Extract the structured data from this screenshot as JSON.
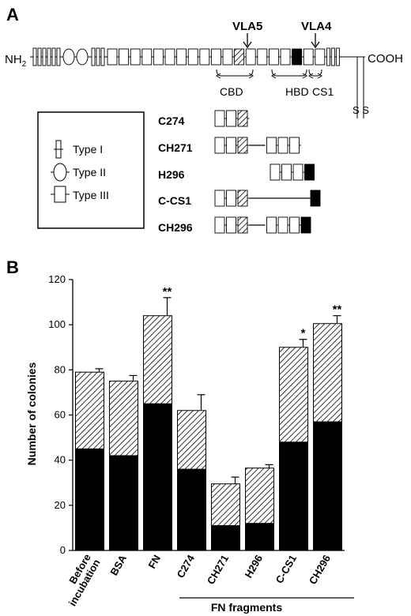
{
  "panel_a": {
    "label": "A",
    "n_term": "NH",
    "n_term_sub": "2",
    "c_term": "COOH",
    "ss": "S S",
    "vla5": "VLA5",
    "vla4": "VLA4",
    "cbd": "CBD",
    "hbd": "HBD",
    "cs1": "CS1",
    "legend": {
      "type1": "Type I",
      "type2": "Type II",
      "type3": "Type III"
    },
    "fragments": [
      "C274",
      "CH271",
      "H296",
      "C-CS1",
      "CH296"
    ]
  },
  "panel_b": {
    "label": "B"
  },
  "chart_data": {
    "type": "bar",
    "stacked": true,
    "categories": [
      "Before incubation",
      "BSA",
      "FN",
      "C274",
      "CH271",
      "H296",
      "C-CS1",
      "CH296"
    ],
    "category_lines": [
      [
        "Before",
        "incubation"
      ],
      [
        "BSA"
      ],
      [
        "FN"
      ],
      [
        "C274"
      ],
      [
        "CH271"
      ],
      [
        "H296"
      ],
      [
        "C-CS1"
      ],
      [
        "CH296"
      ]
    ],
    "series": [
      {
        "fill": "solid-black",
        "values": [
          45,
          42,
          65,
          36,
          11,
          12,
          48,
          57
        ]
      },
      {
        "fill": "hatched",
        "values": [
          34,
          33,
          39,
          26,
          18.5,
          24.5,
          42,
          43.5
        ]
      }
    ],
    "totals": [
      79,
      75,
      104,
      62,
      29.5,
      36.5,
      90,
      100.5
    ],
    "error_bars": [
      1.5,
      2.5,
      8,
      7,
      3,
      1.5,
      3.5,
      3.5
    ],
    "significance": [
      "",
      "",
      "**",
      "",
      "",
      "",
      "*",
      "**"
    ],
    "ylabel": "Number of colonies",
    "ylim": [
      0,
      120
    ],
    "yticks": [
      0,
      20,
      40,
      60,
      80,
      100,
      120
    ],
    "group_label": "FN fragments",
    "grid": false
  }
}
